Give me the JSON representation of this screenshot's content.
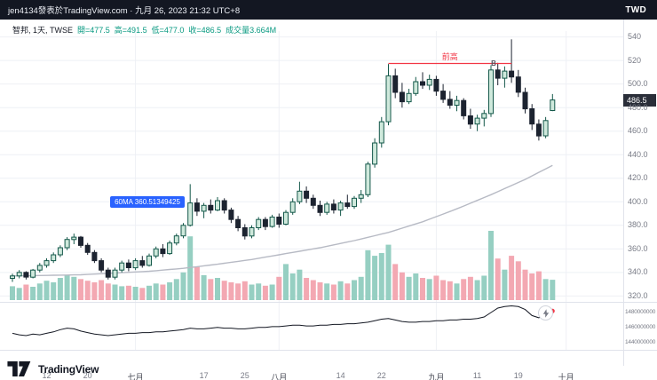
{
  "topbar": {
    "attribution": "jen4134發表於TradingView.com · 九月 26, 2023 21:32 UTC+8",
    "currency": "TWD"
  },
  "legend": {
    "symbol": "智邦, 1天, TWSE",
    "values": [
      "開=477.5",
      "高=491.5",
      "低=477.0",
      "收=486.5",
      "成交量3.664M"
    ]
  },
  "footer": {
    "brand": "TradingView"
  },
  "colors": {
    "topbar_bg": "#131722",
    "up_fill": "#cfe9dc",
    "up_border": "#14584a",
    "down": "#1c2330",
    "vol_up": "#96cfc2",
    "vol_down": "#f3a8b2",
    "ma": "#b7bac4",
    "grid": "#eef0f5",
    "border": "#e0e3eb",
    "red": "#f23645",
    "blue": "#2962ff",
    "ink": "#131722",
    "axis_text": "#787b86",
    "badge_bg": "#2a2e39"
  },
  "chart_data": {
    "type": "candlestick",
    "title": "智邦 1天 TWSE",
    "ylim": [
      315,
      545
    ],
    "price_ticks": [
      {
        "label": "540",
        "value": 540
      },
      {
        "label": "520",
        "value": 520
      },
      {
        "label": "500.0",
        "value": 500
      },
      {
        "label": "480.0",
        "value": 480
      },
      {
        "label": "460.0",
        "value": 460
      },
      {
        "label": "440.0",
        "value": 440
      },
      {
        "label": "420.0",
        "value": 420
      },
      {
        "label": "400.0",
        "value": 400
      },
      {
        "label": "380.0",
        "value": 380
      },
      {
        "label": "360.0",
        "value": 360
      },
      {
        "label": "340.0",
        "value": 340
      },
      {
        "label": "320.0",
        "value": 320
      }
    ],
    "time_ticks": [
      {
        "label": "12",
        "i": 5,
        "month": false
      },
      {
        "label": "20",
        "i": 11,
        "month": false
      },
      {
        "label": "七月",
        "i": 18,
        "month": true
      },
      {
        "label": "17",
        "i": 28,
        "month": false
      },
      {
        "label": "25",
        "i": 34,
        "month": false
      },
      {
        "label": "八月",
        "i": 39,
        "month": true
      },
      {
        "label": "14",
        "i": 48,
        "month": false
      },
      {
        "label": "22",
        "i": 54,
        "month": false
      },
      {
        "label": "九月",
        "i": 62,
        "month": true
      },
      {
        "label": "11",
        "i": 68,
        "month": false
      },
      {
        "label": "19",
        "i": 74,
        "month": false
      },
      {
        "label": "十月",
        "i": 81,
        "month": true
      }
    ],
    "candles": [
      [
        335,
        339,
        332,
        337
      ],
      [
        337,
        342,
        335,
        340
      ],
      [
        340,
        341,
        334,
        336
      ],
      [
        336,
        343,
        335,
        342
      ],
      [
        342,
        348,
        340,
        346
      ],
      [
        346,
        352,
        344,
        350
      ],
      [
        350,
        357,
        348,
        355
      ],
      [
        355,
        363,
        353,
        361
      ],
      [
        361,
        370,
        359,
        368
      ],
      [
        368,
        373,
        364,
        370
      ],
      [
        370,
        371,
        361,
        363
      ],
      [
        363,
        365,
        355,
        357
      ],
      [
        357,
        359,
        348,
        350
      ],
      [
        350,
        352,
        340,
        342
      ],
      [
        342,
        344,
        334,
        336
      ],
      [
        336,
        344,
        334,
        342
      ],
      [
        342,
        350,
        340,
        348
      ],
      [
        348,
        351,
        341,
        344
      ],
      [
        344,
        352,
        342,
        350
      ],
      [
        350,
        354,
        344,
        346
      ],
      [
        346,
        356,
        345,
        354
      ],
      [
        354,
        362,
        352,
        360
      ],
      [
        360,
        364,
        353,
        356
      ],
      [
        356,
        367,
        355,
        365
      ],
      [
        365,
        373,
        363,
        371
      ],
      [
        371,
        382,
        369,
        380
      ],
      [
        380,
        415,
        379,
        399
      ],
      [
        399,
        403,
        388,
        392
      ],
      [
        392,
        399,
        386,
        397
      ],
      [
        397,
        402,
        390,
        393
      ],
      [
        393,
        404,
        392,
        401
      ],
      [
        401,
        403,
        390,
        393
      ],
      [
        393,
        395,
        382,
        385
      ],
      [
        385,
        388,
        375,
        378
      ],
      [
        378,
        381,
        368,
        371
      ],
      [
        371,
        380,
        369,
        378
      ],
      [
        378,
        387,
        376,
        385
      ],
      [
        385,
        387,
        376,
        379
      ],
      [
        379,
        389,
        378,
        387
      ],
      [
        387,
        390,
        378,
        381
      ],
      [
        381,
        393,
        380,
        391
      ],
      [
        391,
        403,
        389,
        400
      ],
      [
        400,
        417,
        398,
        409
      ],
      [
        409,
        413,
        399,
        403
      ],
      [
        403,
        406,
        394,
        397
      ],
      [
        397,
        401,
        388,
        391
      ],
      [
        391,
        400,
        389,
        398
      ],
      [
        398,
        402,
        390,
        393
      ],
      [
        393,
        401,
        388,
        399
      ],
      [
        399,
        406,
        394,
        396
      ],
      [
        396,
        405,
        394,
        403
      ],
      [
        403,
        410,
        399,
        406
      ],
      [
        406,
        434,
        404,
        432
      ],
      [
        432,
        454,
        429,
        450
      ],
      [
        450,
        472,
        446,
        468
      ],
      [
        468,
        517,
        465,
        507
      ],
      [
        507,
        513,
        488,
        493
      ],
      [
        493,
        501,
        480,
        485
      ],
      [
        485,
        496,
        483,
        492
      ],
      [
        492,
        506,
        490,
        502
      ],
      [
        502,
        510,
        496,
        499
      ],
      [
        499,
        508,
        495,
        504
      ],
      [
        504,
        507,
        490,
        494
      ],
      [
        494,
        500,
        484,
        487
      ],
      [
        487,
        494,
        479,
        482
      ],
      [
        482,
        490,
        477,
        486
      ],
      [
        486,
        488,
        470,
        473
      ],
      [
        473,
        479,
        462,
        466
      ],
      [
        466,
        474,
        460,
        471
      ],
      [
        471,
        478,
        464,
        475
      ],
      [
        475,
        516,
        472,
        512
      ],
      [
        512,
        518,
        499,
        505
      ],
      [
        505,
        515,
        497,
        511
      ],
      [
        511,
        538,
        501,
        506
      ],
      [
        506,
        512,
        489,
        493
      ],
      [
        493,
        497,
        475,
        479
      ],
      [
        479,
        483,
        461,
        466
      ],
      [
        466,
        470,
        452,
        456
      ],
      [
        456,
        472,
        454,
        469
      ],
      [
        477.5,
        491.5,
        477.0,
        486.5
      ]
    ],
    "volume_m": [
      2.5,
      2.2,
      2.8,
      2.4,
      3.0,
      3.5,
      3.2,
      4.0,
      4.5,
      4.2,
      3.8,
      3.5,
      3.2,
      3.6,
      3.0,
      2.8,
      2.5,
      2.6,
      2.4,
      2.2,
      2.6,
      3.0,
      2.8,
      3.2,
      3.8,
      5.0,
      11.5,
      6.0,
      4.5,
      3.8,
      4.0,
      3.5,
      3.2,
      3.0,
      3.4,
      2.8,
      3.0,
      2.6,
      2.8,
      4.2,
      6.5,
      4.8,
      5.5,
      4.0,
      3.6,
      3.2,
      3.0,
      2.8,
      3.4,
      3.0,
      3.6,
      4.2,
      9.0,
      8.0,
      8.5,
      10.0,
      6.5,
      5.0,
      4.2,
      4.8,
      4.0,
      3.8,
      4.4,
      3.6,
      3.4,
      3.0,
      3.8,
      4.2,
      3.6,
      4.4,
      12.5,
      7.5,
      5.5,
      8.0,
      7.0,
      5.5,
      4.8,
      5.2,
      3.8,
      3.664
    ],
    "ma60": [
      337,
      337.1,
      337.2,
      337.3,
      337.4,
      337.5,
      337.6,
      337.7,
      337.8,
      337.9,
      338,
      338.3,
      338.6,
      338.9,
      339.2,
      339.5,
      339.8,
      340.1,
      340.4,
      340.7,
      341,
      341.5,
      342,
      342.5,
      343,
      343.5,
      344.2,
      344.9,
      345.6,
      346.3,
      347,
      347.8,
      348.6,
      349.4,
      350.2,
      351,
      352,
      353,
      354,
      355,
      356,
      357,
      358,
      359,
      360,
      361,
      362.2,
      363.4,
      364.6,
      365.8,
      367,
      368.4,
      369.8,
      371.2,
      372.6,
      374,
      375.8,
      377.6,
      379.4,
      381.2,
      383,
      385.2,
      387.4,
      389.6,
      391.8,
      394,
      396.4,
      398.8,
      401.2,
      403.6,
      406,
      408.6,
      411.2,
      413.8,
      416.4,
      419,
      422,
      425,
      428,
      431
    ],
    "last": {
      "open": 477.5,
      "high": 491.5,
      "low": 477.0,
      "close": 486.5,
      "volume": "3.664M",
      "price_label": "486.5"
    },
    "prev_high_line": {
      "label": "前高",
      "price": 517.5,
      "from_i": 55,
      "to_i": 73
    },
    "ma_callout": {
      "text": "60MA 360.51349425",
      "i": 14.3,
      "price": 399.5
    },
    "b_marker": {
      "text": "B",
      "i": 70.4,
      "price": 515
    },
    "lower_panel": {
      "type": "line",
      "values_m": [
        1452,
        1450,
        1449,
        1451,
        1450,
        1452,
        1454,
        1457,
        1459,
        1458,
        1455,
        1453,
        1451,
        1450,
        1449,
        1450,
        1451,
        1452,
        1452,
        1453,
        1453,
        1454,
        1454,
        1455,
        1456,
        1457,
        1459,
        1458,
        1458,
        1459,
        1460,
        1459,
        1459,
        1458,
        1458,
        1459,
        1460,
        1460,
        1461,
        1461,
        1462,
        1463,
        1463,
        1462,
        1462,
        1463,
        1463,
        1464,
        1464,
        1465,
        1465,
        1466,
        1467,
        1469,
        1471,
        1472,
        1470,
        1468,
        1467,
        1467,
        1468,
        1468,
        1469,
        1469,
        1470,
        1470,
        1471,
        1471,
        1472,
        1474,
        1480,
        1486,
        1488,
        1489,
        1488,
        1484,
        1476,
        1473,
        1478,
        1482
      ],
      "axis_values_m": [
        1480,
        1460,
        1440
      ],
      "axis_labels": [
        "1480000000",
        "1460000000",
        "1440000000"
      ],
      "ylim_m": [
        1435,
        1492
      ]
    }
  }
}
